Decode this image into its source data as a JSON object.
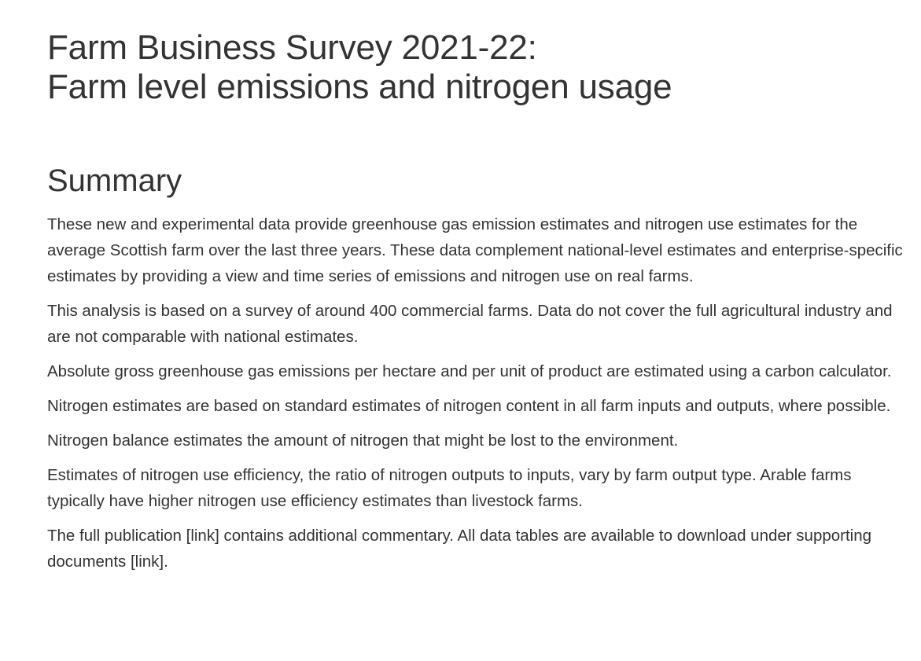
{
  "document": {
    "title_line_1": "Farm Business Survey 2021-22:",
    "title_line_2": "Farm level emissions and nitrogen usage",
    "summary_heading": "Summary",
    "paragraphs": [
      "These new and experimental data provide greenhouse gas emission estimates and nitrogen use estimates for the average Scottish farm over the last three years. These data complement national-level estimates and enterprise-specific estimates by providing a view and time series of emissions and nitrogen use on real farms.",
      "This analysis is based on a survey of around 400 commercial farms. Data do not cover the full agricultural industry and are not comparable with national estimates.",
      "Absolute gross greenhouse gas emissions per hectare and per unit of product are estimated using a carbon calculator.",
      "Nitrogen estimates are based on standard estimates of nitrogen content in all farm inputs and outputs, where possible.",
      "Nitrogen balance estimates the amount of nitrogen that might be lost to the environment.",
      "Estimates of nitrogen use efficiency, the ratio of nitrogen outputs to inputs, vary by farm output type. Arable farms typically have higher nitrogen use efficiency estimates than livestock farms.",
      "The full publication [link] contains additional commentary. All data tables are available to download under supporting documents [link]."
    ]
  }
}
